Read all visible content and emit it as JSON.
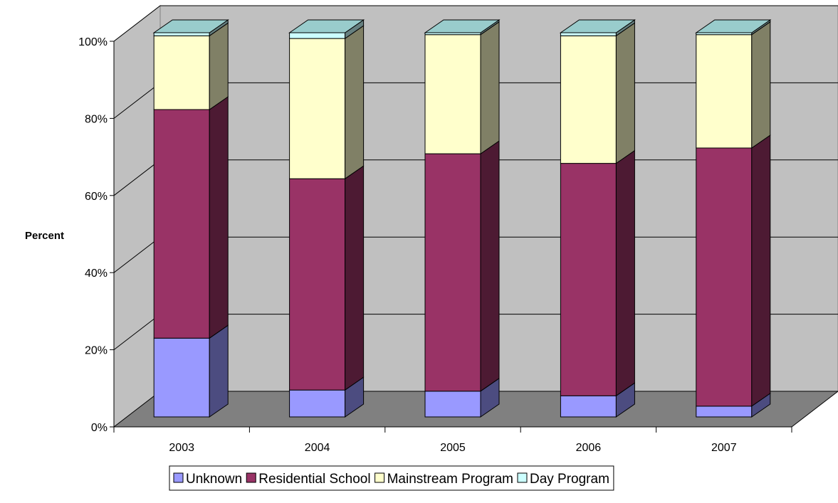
{
  "chart_data": {
    "type": "bar",
    "stacked": true,
    "three_d": true,
    "title": "",
    "xlabel": "",
    "ylabel": "Percent",
    "ylim": [
      0,
      100
    ],
    "y_tick_labels": [
      "0%",
      "20%",
      "40%",
      "60%",
      "80%",
      "100%"
    ],
    "grid": true,
    "legend_position": "bottom",
    "categories": [
      "2003",
      "2004",
      "2005",
      "2006",
      "2007"
    ],
    "series": [
      {
        "name": "Unknown",
        "values": [
          20.5,
          7,
          6.7,
          5.5,
          2.8
        ],
        "color": "#9999ff",
        "side_color": "#4c4c80"
      },
      {
        "name": "Residential School",
        "values": [
          59.5,
          55,
          61.8,
          60.5,
          67.2
        ],
        "color": "#993366",
        "side_color": "#4d1a33"
      },
      {
        "name": "Mainstream Program",
        "values": [
          19.2,
          36.5,
          31,
          33.2,
          29.5
        ],
        "color": "#ffffcc",
        "side_color": "#808066"
      },
      {
        "name": "Day Program",
        "values": [
          0.8,
          1.5,
          0.5,
          0.8,
          0.5
        ],
        "color": "#ccffff",
        "side_color": "#668080"
      }
    ],
    "colors": {
      "back_wall": "#c0c0c0",
      "floor": "#808080",
      "top_face": "#99cccc"
    }
  }
}
